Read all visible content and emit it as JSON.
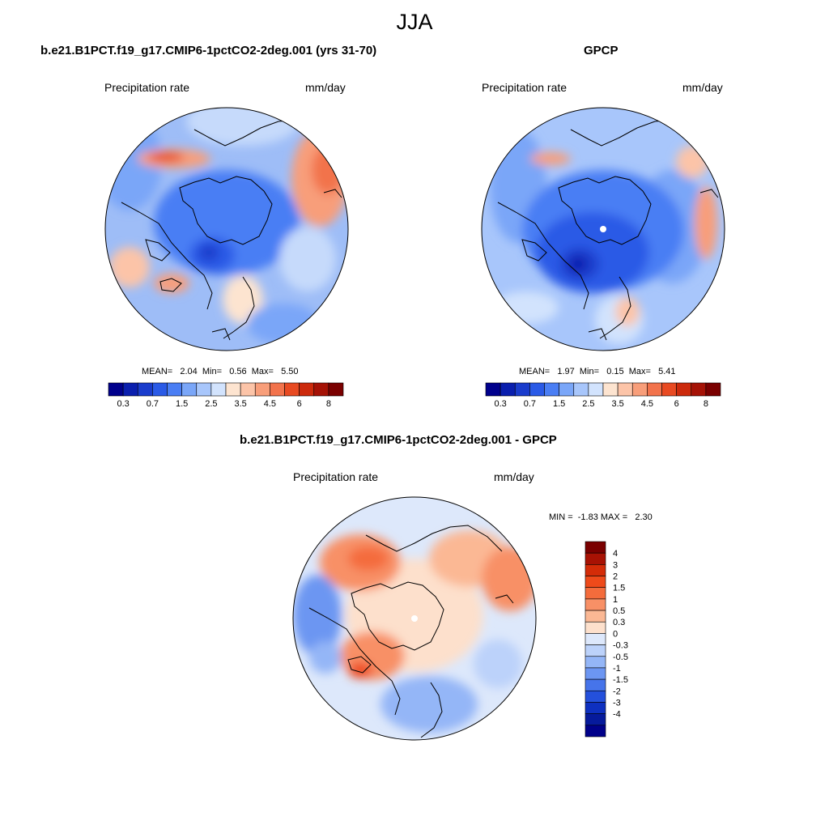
{
  "season": "JJA",
  "panels": [
    {
      "title": "b.e21.B1PCT.f19_g17.CMIP6-1pctCO2-2deg.001 (yrs 31-70)",
      "variable": "Precipitation rate",
      "units": "mm/day",
      "stats": "MEAN=   2.04  Min=   0.56  Max=   5.50",
      "mean": 2.04,
      "min": 0.56,
      "max": 5.5
    },
    {
      "title": "GPCP",
      "variable": "Precipitation rate",
      "units": "mm/day",
      "stats": "MEAN=   1.97  Min=   0.15  Max=   5.41",
      "mean": 1.97,
      "min": 0.15,
      "max": 5.41
    },
    {
      "title": "b.e21.B1PCT.f19_g17.CMIP6-1pctCO2-2deg.001 - GPCP",
      "variable": "Precipitation rate",
      "units": "mm/day",
      "stats": "MIN =  -1.83 MAX =   2.30",
      "min": -1.83,
      "max": 2.3
    }
  ],
  "colorbar_abs": {
    "colors": [
      "#00008c",
      "#0a1fae",
      "#1a3ccc",
      "#2a5ae6",
      "#4a7ef4",
      "#7aa6f8",
      "#a8c6fb",
      "#d2e3fd",
      "#fde4d0",
      "#fcc4a8",
      "#f89e7a",
      "#f2734c",
      "#e84a22",
      "#cc2a0c",
      "#a51206",
      "#7a0000"
    ],
    "tick_labels": [
      "0.3",
      "0.7",
      "1.5",
      "2.5",
      "3.5",
      "4.5",
      "6",
      "8"
    ]
  },
  "colorbar_diff": {
    "colors": [
      "#7a0000",
      "#a81204",
      "#d42c08",
      "#ee4a1a",
      "#f46c3c",
      "#f89066",
      "#fbb894",
      "#fde0cc",
      "#dde8fb",
      "#bcd2fa",
      "#94b6f7",
      "#6c96f2",
      "#4674ea",
      "#2450dc",
      "#0e30c0",
      "#061a9c",
      "#00008a"
    ],
    "tick_labels": [
      "4",
      "3",
      "2",
      "1.5",
      "1",
      "0.5",
      "0.3",
      "0",
      "-0.3",
      "-0.5",
      "-1",
      "-1.5",
      "-2",
      "-3",
      "-4"
    ]
  }
}
